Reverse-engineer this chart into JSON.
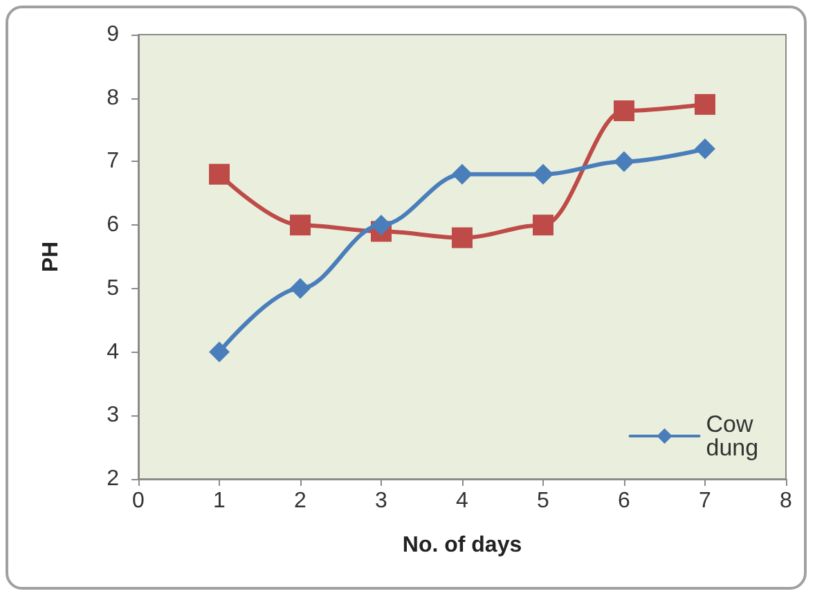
{
  "chart_data": {
    "type": "line",
    "xlabel": "No. of days",
    "ylabel": "PH",
    "x": [
      1,
      2,
      3,
      4,
      5,
      6,
      7
    ],
    "series": [
      {
        "name": "Cow dung",
        "color": "#4a7ebb",
        "marker": "diamond",
        "values": [
          4,
          5,
          6,
          6.8,
          6.8,
          7,
          7.2
        ]
      },
      {
        "color": "#be4b48",
        "marker": "square",
        "values": [
          6.8,
          6,
          5.9,
          5.8,
          6,
          7.8,
          7.9
        ]
      }
    ],
    "xlim": [
      0,
      8
    ],
    "xticks": [
      0,
      1,
      2,
      3,
      4,
      5,
      6,
      7,
      8
    ],
    "ylim": [
      2,
      9
    ],
    "yticks": [
      2,
      3,
      4,
      5,
      6,
      7,
      8,
      9
    ],
    "grid": false,
    "legend": "bottom right",
    "line_style": "solid"
  }
}
